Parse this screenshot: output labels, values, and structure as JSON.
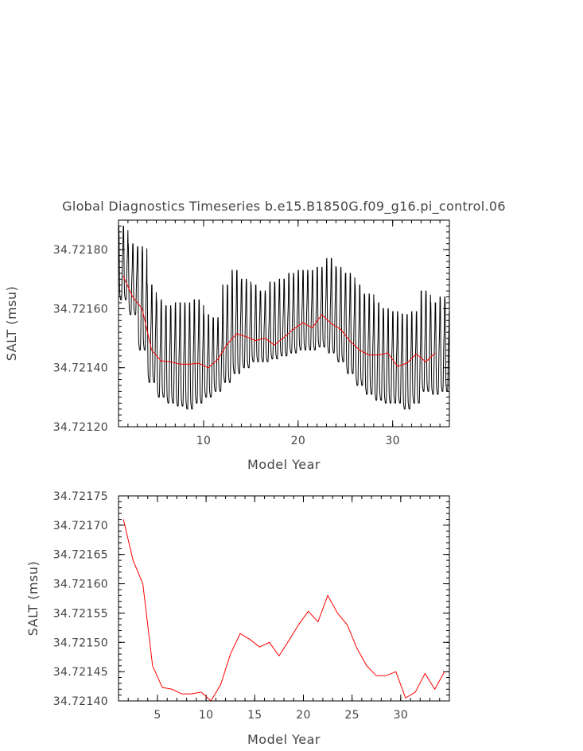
{
  "chart_data": [
    {
      "type": "line",
      "title": "Global Diagnostics Timeseries b.e15.B1850G.f09_g16.pi_control.06",
      "xlabel": "Model Year",
      "ylabel": "SALT (msu)",
      "xlim": [
        1,
        36
      ],
      "ylim": [
        34.7212,
        34.7219
      ],
      "x_ticks": [
        10,
        20,
        30
      ],
      "x_tick_labels": [
        "10",
        "20",
        "30"
      ],
      "y_ticks": [
        34.7212,
        34.7214,
        34.7216,
        34.7218
      ],
      "y_tick_labels": [
        "34.72120",
        "34.72140",
        "34.72160",
        "34.72180"
      ],
      "series": [
        {
          "color": "#000000",
          "sampling": "monthly",
          "seasonal_peaks": [
            34.72188,
            34.72182,
            34.72181,
            34.72168,
            34.72163,
            34.72161,
            34.72162,
            34.72162,
            34.72163,
            34.72158,
            34.72157,
            34.72168,
            34.72173,
            34.7217,
            34.72168,
            34.72166,
            34.72169,
            34.7217,
            34.72172,
            34.72173,
            34.72173,
            34.72174,
            34.72177,
            34.72174,
            34.72172,
            34.72168,
            34.72165,
            34.72162,
            34.7216,
            34.72159,
            34.72158,
            34.72159,
            34.72166,
            34.72162,
            34.72164,
            34.72159
          ],
          "seasonal_troughs": [
            34.72163,
            34.72158,
            34.72146,
            34.72135,
            34.7213,
            34.72128,
            34.72127,
            34.72126,
            34.72128,
            34.7213,
            34.72132,
            34.72135,
            34.72138,
            34.7214,
            34.72142,
            34.72142,
            34.72143,
            34.72144,
            34.72145,
            34.72146,
            34.72146,
            34.72147,
            34.72145,
            34.72142,
            34.72138,
            34.72134,
            34.72131,
            34.72129,
            34.72128,
            34.72128,
            34.72126,
            34.72128,
            34.72132,
            34.72131,
            34.72132,
            34.72125
          ]
        },
        {
          "color": "#ff0000",
          "sampling": "annual mean",
          "x": [
            1.5,
            2.5,
            3.5,
            4.5,
            5.5,
            6.5,
            7.5,
            8.5,
            9.5,
            10.5,
            11.5,
            12.5,
            13.5,
            14.5,
            15.5,
            16.5,
            17.5,
            18.5,
            19.5,
            20.5,
            21.5,
            22.5,
            23.5,
            24.5,
            25.5,
            26.5,
            27.5,
            28.5,
            29.5,
            30.5,
            31.5,
            32.5,
            33.5,
            34.5
          ],
          "values": [
            34.72171,
            34.72164,
            34.7216,
            34.72146,
            34.721423,
            34.72142,
            34.721412,
            34.721412,
            34.721415,
            34.7214,
            34.721428,
            34.72148,
            34.721515,
            34.721505,
            34.721492,
            34.7215,
            34.721477,
            34.721503,
            34.72153,
            34.721553,
            34.721535,
            34.72158,
            34.72155,
            34.72153,
            34.72149,
            34.72146,
            34.721443,
            34.721443,
            34.72145,
            34.721405,
            34.721415,
            34.721447,
            34.72142,
            34.72145
          ]
        }
      ]
    },
    {
      "type": "line",
      "title": "",
      "xlabel": "Model Year",
      "ylabel": "SALT (msu)",
      "xlim": [
        1,
        35
      ],
      "ylim": [
        34.7214,
        34.72175
      ],
      "x_ticks": [
        5,
        10,
        15,
        20,
        25,
        30
      ],
      "x_tick_labels": [
        "5",
        "10",
        "15",
        "20",
        "25",
        "30"
      ],
      "y_ticks": [
        34.7214,
        34.72145,
        34.7215,
        34.72155,
        34.7216,
        34.72165,
        34.7217,
        34.72175
      ],
      "y_tick_labels": [
        "34.72140",
        "34.72145",
        "34.72150",
        "34.72155",
        "34.72160",
        "34.72165",
        "34.72170",
        "34.72175"
      ],
      "series": [
        {
          "color": "#ff0000",
          "x": [
            1.5,
            2.5,
            3.5,
            4.5,
            5.5,
            6.5,
            7.5,
            8.5,
            9.5,
            10.5,
            11.5,
            12.5,
            13.5,
            14.5,
            15.5,
            16.5,
            17.5,
            18.5,
            19.5,
            20.5,
            21.5,
            22.5,
            23.5,
            24.5,
            25.5,
            26.5,
            27.5,
            28.5,
            29.5,
            30.5,
            31.5,
            32.5,
            33.5,
            34.5
          ],
          "values": [
            34.72171,
            34.72164,
            34.7216,
            34.72146,
            34.721423,
            34.72142,
            34.721412,
            34.721412,
            34.721415,
            34.7214,
            34.721428,
            34.72148,
            34.721515,
            34.721505,
            34.721492,
            34.7215,
            34.721477,
            34.721503,
            34.72153,
            34.721553,
            34.721535,
            34.72158,
            34.72155,
            34.72153,
            34.72149,
            34.72146,
            34.721443,
            34.721443,
            34.72145,
            34.721405,
            34.721415,
            34.721447,
            34.72142,
            34.72145
          ]
        }
      ]
    }
  ]
}
